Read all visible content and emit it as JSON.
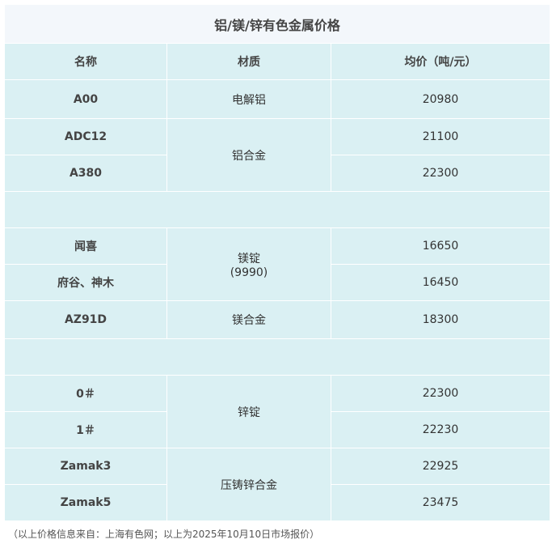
{
  "title": "铝/镁/锌有色金属价格",
  "headers": [
    "名称",
    "材质",
    "均价（吨/元）"
  ],
  "rows": {
    "a00": {
      "name": "A00",
      "material": "电解铝",
      "price": "20980"
    },
    "adc12": {
      "name": "ADC12",
      "material": "铝合金",
      "price": "21100"
    },
    "a380": {
      "name": "A380",
      "price": "22300"
    },
    "wenxi": {
      "name": "闻喜",
      "material": "镁锭",
      "material2": "(9990)",
      "price": "16650"
    },
    "fugu": {
      "name": "府谷、神木",
      "price": "16450"
    },
    "az91d": {
      "name": "AZ91D",
      "material": "镁合金",
      "price": "18300"
    },
    "zn0": {
      "name": "0＃",
      "material": "锌锭",
      "price": "22300"
    },
    "zn1": {
      "name": "1＃",
      "price": "22230"
    },
    "zamak3": {
      "name": "Zamak3",
      "material": "压铸锌合金",
      "price": "22925"
    },
    "zamak5": {
      "name": "Zamak5",
      "price": "23475"
    }
  },
  "footnote": "（以上价格信息来自：上海有色网；以上为2025年10月10日市场报价）"
}
